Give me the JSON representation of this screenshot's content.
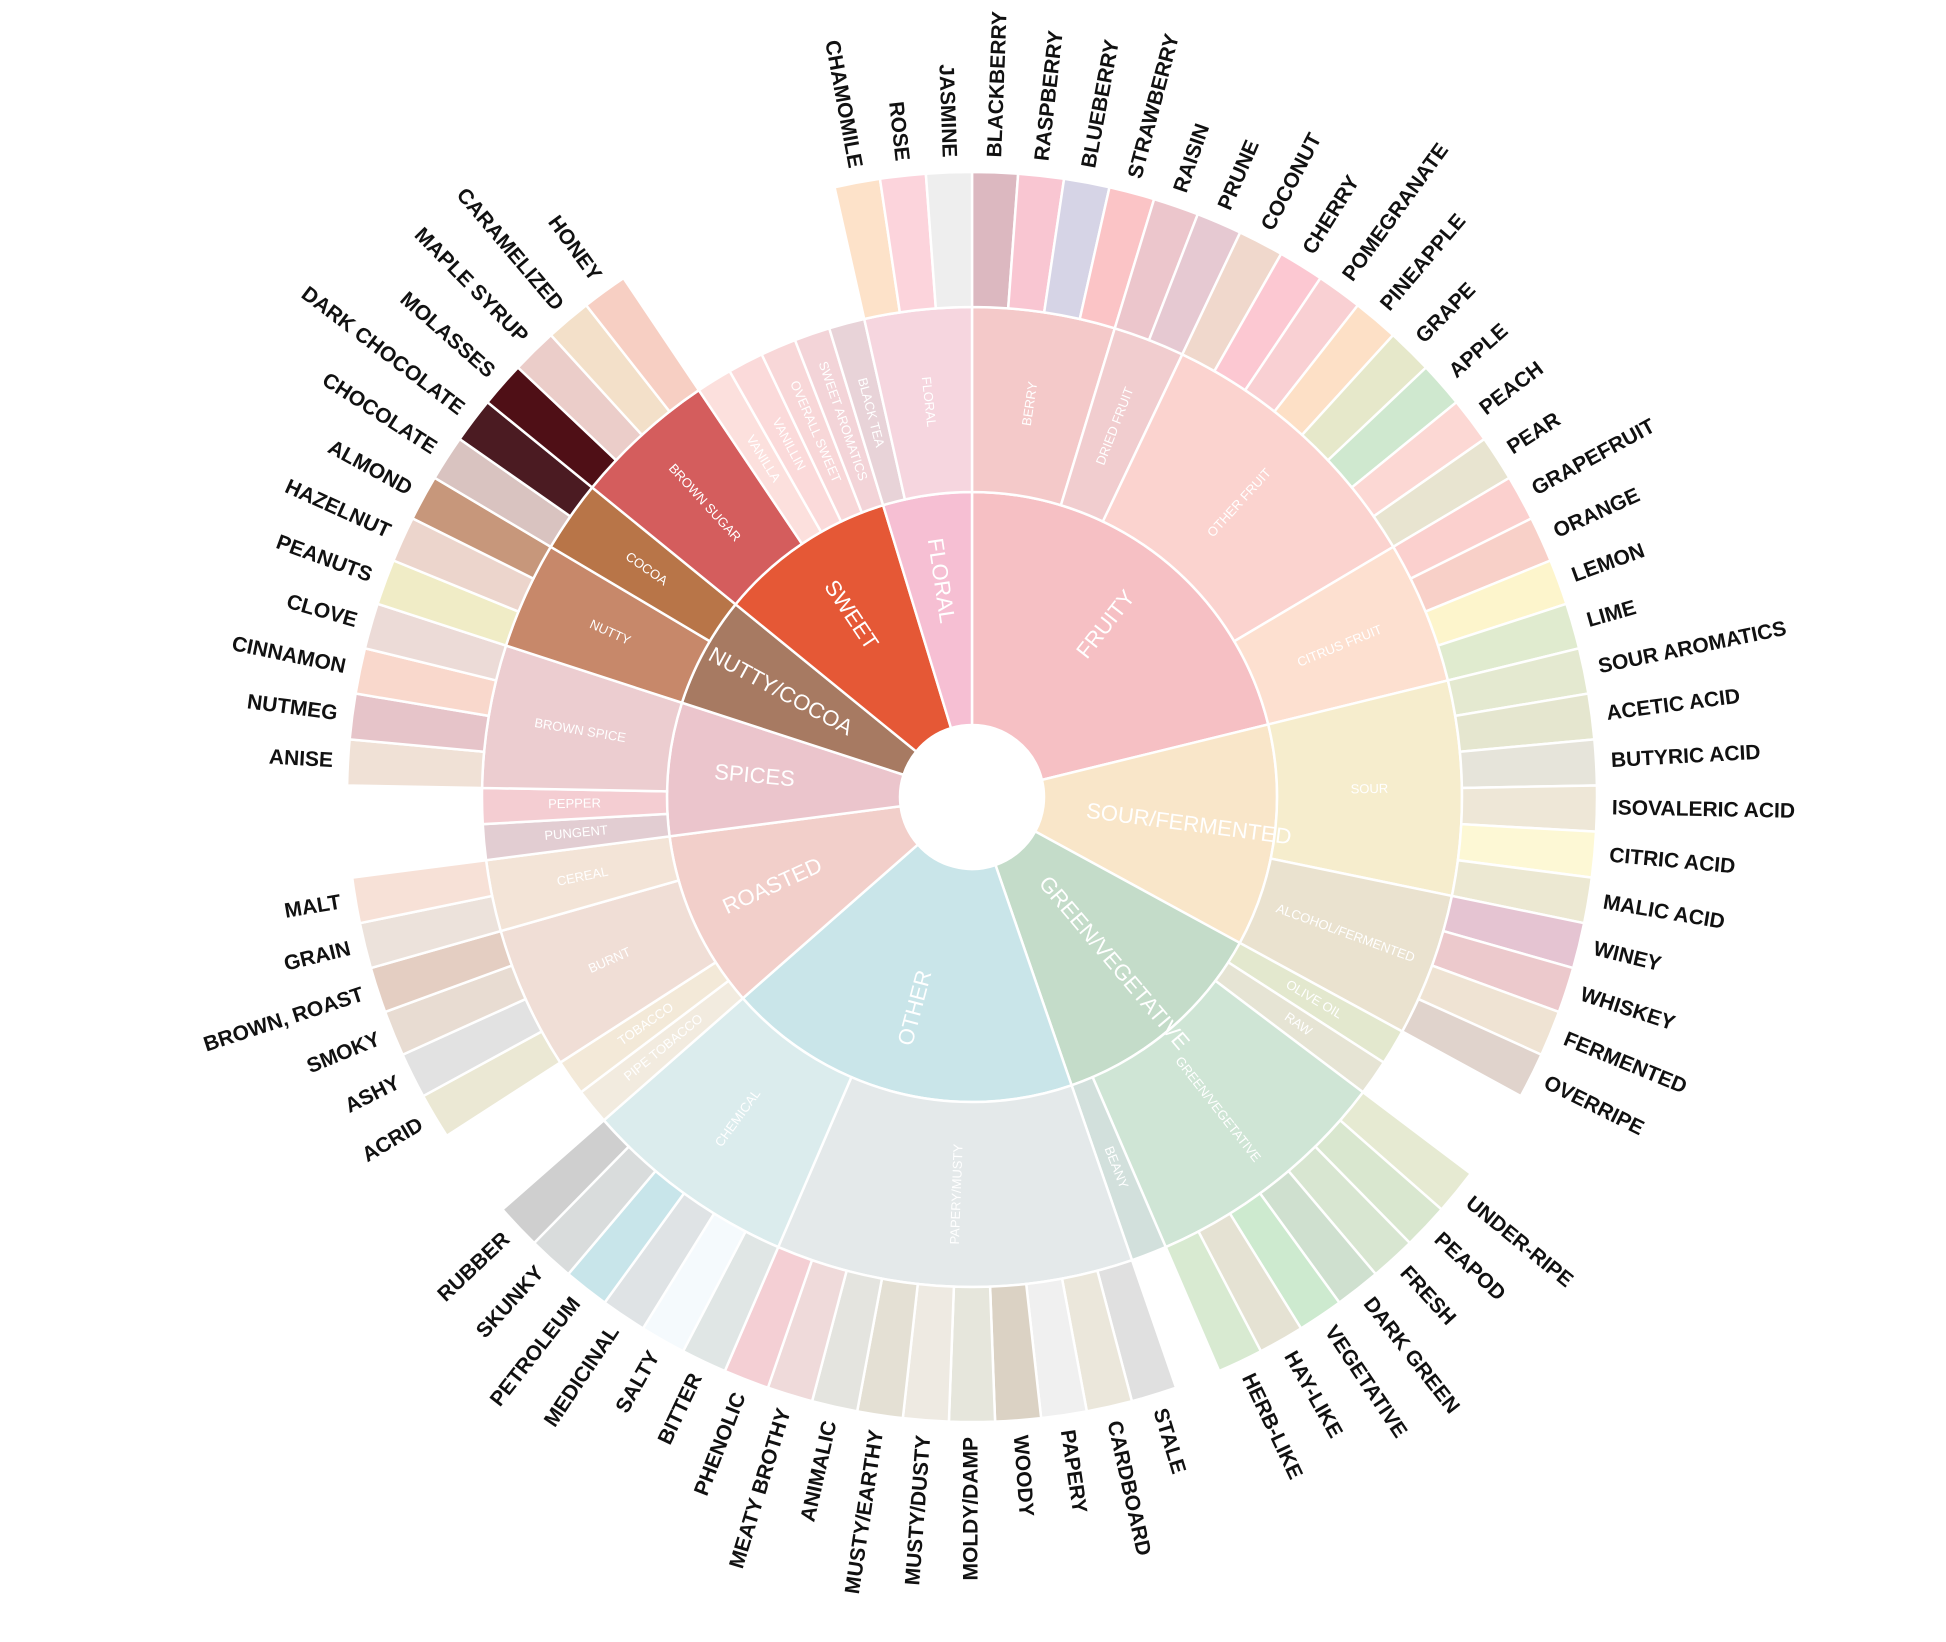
{
  "chart_data": {
    "type": "sunburst",
    "children": [
      {
        "name": "FRUITY",
        "color": "#f6c0c4",
        "children": [
          {
            "name": "BERRY",
            "color": "#f4c9c9",
            "children": [
              {
                "name": "BLACKBERRY",
                "color": "#dcb8c0",
                "value": 1
              },
              {
                "name": "RASPBERRY",
                "color": "#f9c6d2",
                "value": 1
              },
              {
                "name": "BLUEBERRY",
                "color": "#d6d4e6",
                "value": 1
              },
              {
                "name": "STRAWBERRY",
                "color": "#fbc4c6",
                "value": 1
              }
            ]
          },
          {
            "name": "DRIED FRUIT",
            "color": "#f1cdcf",
            "children": [
              {
                "name": "RAISIN",
                "color": "#ecc6cc",
                "value": 1
              },
              {
                "name": "PRUNE",
                "color": "#e6c9d2",
                "value": 1
              }
            ]
          },
          {
            "name": "OTHER FRUIT",
            "color": "#fbd3cf",
            "children": [
              {
                "name": "COCONUT",
                "color": "#f0d8cc",
                "value": 1
              },
              {
                "name": "CHERRY",
                "color": "#fcc8d2",
                "value": 1
              },
              {
                "name": "POMEGRANATE",
                "color": "#f9d0d3",
                "value": 1
              },
              {
                "name": "PINEAPPLE",
                "color": "#fde0c6",
                "value": 1
              },
              {
                "name": "GRAPE",
                "color": "#e6e8ca",
                "value": 1
              },
              {
                "name": "APPLE",
                "color": "#cfe8cf",
                "value": 1
              },
              {
                "name": "PEACH",
                "color": "#fcd8d4",
                "value": 1
              },
              {
                "name": "PEAR",
                "color": "#e8e4d0",
                "value": 1
              }
            ]
          },
          {
            "name": "CITRUS FRUIT",
            "color": "#fde0d0",
            "children": [
              {
                "name": "GRAPEFRUIT",
                "color": "#fbd0ce",
                "value": 1
              },
              {
                "name": "ORANGE",
                "color": "#f8d0c8",
                "value": 1
              },
              {
                "name": "LEMON",
                "color": "#fdf5cc",
                "value": 1
              },
              {
                "name": "LIME",
                "color": "#e0ebcf",
                "value": 1
              }
            ]
          }
        ]
      },
      {
        "name": "SOUR/FERMENTED",
        "color": "#f9e6c9",
        "children": [
          {
            "name": "SOUR",
            "color": "#f6edcd",
            "children": [
              {
                "name": "SOUR AROMATICS",
                "color": "#e4e9d0",
                "value": 1
              },
              {
                "name": "ACETIC ACID",
                "color": "#e5e6cf",
                "value": 1
              },
              {
                "name": "BUTYRIC ACID",
                "color": "#e6e4da",
                "value": 1
              },
              {
                "name": "ISOVALERIC ACID",
                "color": "#eee7d7",
                "value": 1
              },
              {
                "name": "CITRIC ACID",
                "color": "#fdf8d5",
                "value": 1
              },
              {
                "name": "MALIC ACID",
                "color": "#ece8d2",
                "value": 1
              }
            ]
          },
          {
            "name": "ALCOHOL/FERMENTED",
            "color": "#eae2cf",
            "children": [
              {
                "name": "WINEY",
                "color": "#e5c4d2",
                "value": 1
              },
              {
                "name": "WHISKEY",
                "color": "#ecc9cc",
                "value": 1
              },
              {
                "name": "FERMENTED",
                "color": "#efe3d3",
                "value": 1
              },
              {
                "name": "OVERRIPE",
                "color": "#e0d3cc",
                "value": 1
              }
            ]
          }
        ]
      },
      {
        "name": "GREEN/VEGETATIVE",
        "color": "#c4dcc9",
        "children": [
          {
            "name": "OLIVE OIL",
            "color": "#e3e8ce",
            "value": 1
          },
          {
            "name": "RAW",
            "color": "#e6e4d4",
            "value": 1
          },
          {
            "name": "GREEN/VEGETATIVE",
            "color": "#cfe5d5",
            "children": [
              {
                "name": "UNDER-RIPE",
                "color": "#e6ead2",
                "value": 1
              },
              {
                "name": "PEAPOD",
                "color": "#d9e7cf",
                "value": 1
              },
              {
                "name": "FRESH",
                "color": "#d8e6d1",
                "value": 1
              },
              {
                "name": "DARK GREEN",
                "color": "#cfe0cf",
                "value": 1
              },
              {
                "name": "VEGETATIVE",
                "color": "#cdeacf",
                "value": 1
              },
              {
                "name": "HAY-LIKE",
                "color": "#e5e2d3",
                "value": 1
              },
              {
                "name": "HERB-LIKE",
                "color": "#d8ead1",
                "value": 1
              }
            ]
          },
          {
            "name": "BEANY",
            "color": "#d2e0dc",
            "value": 1
          }
        ]
      },
      {
        "name": "OTHER",
        "color": "#c9e5e9",
        "children": [
          {
            "name": "PAPERY/MUSTY",
            "color": "#e4e9ea",
            "children": [
              {
                "name": "STALE",
                "color": "#e0e0e0",
                "value": 1
              },
              {
                "name": "CARDBOARD",
                "color": "#ebe7db",
                "value": 1
              },
              {
                "name": "PAPERY",
                "color": "#f0f0f0",
                "value": 1
              },
              {
                "name": "WOODY",
                "color": "#dbd2c4",
                "value": 1
              },
              {
                "name": "MOLDY/DAMP",
                "color": "#e6e6dc",
                "value": 1
              },
              {
                "name": "MUSTY/DUSTY",
                "color": "#eeeae2",
                "value": 1
              },
              {
                "name": "MUSTY/EARTHY",
                "color": "#e4e0d4",
                "value": 1
              },
              {
                "name": "ANIMALIC",
                "color": "#e4e4df",
                "value": 1
              },
              {
                "name": "MEATY BROTHY",
                "color": "#efdada",
                "value": 1
              },
              {
                "name": "PHENOLIC",
                "color": "#f4cfd4",
                "value": 1
              }
            ]
          },
          {
            "name": "CHEMICAL",
            "color": "#dbeced",
            "children": [
              {
                "name": "BITTER",
                "color": "#e0e6e5",
                "value": 1
              },
              {
                "name": "SALTY",
                "color": "#f5fafd",
                "value": 1
              },
              {
                "name": "MEDICINAL",
                "color": "#dfe3e5",
                "value": 1
              },
              {
                "name": "PETROLEUM",
                "color": "#c8e5ea",
                "value": 1
              },
              {
                "name": "SKUNKY",
                "color": "#d9dcdc",
                "value": 1
              },
              {
                "name": "RUBBER",
                "color": "#cfcfcf",
                "value": 1
              }
            ]
          }
        ]
      },
      {
        "name": "ROASTED",
        "color": "#f2cfca",
        "children": [
          {
            "name": "PIPE TOBACCO",
            "color": "#f2ebdf",
            "value": 1
          },
          {
            "name": "TOBACCO",
            "color": "#f3e9d8",
            "value": 1
          },
          {
            "name": "BURNT",
            "color": "#f0ded6",
            "children": [
              {
                "name": "ACRID",
                "color": "#ebe8d4",
                "value": 1
              },
              {
                "name": "ASHY",
                "color": "#e2e2e2",
                "value": 1
              },
              {
                "name": "SMOKY",
                "color": "#e8dcd2",
                "value": 1
              },
              {
                "name": "BROWN, ROAST",
                "color": "#e4cec2",
                "value": 1
              }
            ]
          },
          {
            "name": "CEREAL",
            "color": "#f3e4d7",
            "children": [
              {
                "name": "GRAIN",
                "color": "#ece2db",
                "value": 1
              },
              {
                "name": "MALT",
                "color": "#f7e1d7",
                "value": 1
              }
            ]
          }
        ]
      },
      {
        "name": "SPICES",
        "color": "#ebc5cc",
        "children": [
          {
            "name": "PUNGENT",
            "color": "#e2cdd2",
            "value": 1
          },
          {
            "name": "PEPPER",
            "color": "#f4cdd2",
            "value": 1
          },
          {
            "name": "BROWN SPICE",
            "color": "#eccdd0",
            "children": [
              {
                "name": "ANISE",
                "color": "#f0e1d6",
                "value": 1
              },
              {
                "name": "NUTMEG",
                "color": "#e6c4c9",
                "value": 1
              },
              {
                "name": "CINNAMON",
                "color": "#f9d8cc",
                "value": 1
              },
              {
                "name": "CLOVE",
                "color": "#ecdbd7",
                "value": 1
              }
            ]
          }
        ]
      },
      {
        "name": "NUTTY/COCOA",
        "color": "#a77a62",
        "children": [
          {
            "name": "NUTTY",
            "color": "#c7886a",
            "children": [
              {
                "name": "PEANUTS",
                "color": "#f0ecc6",
                "value": 1
              },
              {
                "name": "HAZELNUT",
                "color": "#ecd5cc",
                "value": 1
              },
              {
                "name": "ALMOND",
                "color": "#c7977b",
                "value": 1
              }
            ]
          },
          {
            "name": "COCOA",
            "color": "#b87548",
            "children": [
              {
                "name": "CHOCOLATE",
                "color": "#d9c3c0",
                "value": 1
              },
              {
                "name": "DARK CHOCOLATE",
                "color": "#4b1b22",
                "value": 1
              }
            ]
          }
        ]
      },
      {
        "name": "SWEET",
        "color": "#e55836",
        "children": [
          {
            "name": "BROWN SUGAR",
            "color": "#d45d5d",
            "children": [
              {
                "name": "MOLASSES",
                "color": "#4f0f16",
                "value": 1
              },
              {
                "name": "MAPLE SYRUP",
                "color": "#ebcdc9",
                "value": 1
              },
              {
                "name": "CARAMELIZED",
                "color": "#f3e0c9",
                "value": 1
              },
              {
                "name": "HONEY",
                "color": "#f7cfc3",
                "value": 1
              }
            ]
          },
          {
            "name": "VANILLA",
            "color": "#fce0dd",
            "value": 1
          },
          {
            "name": "VANILLIN",
            "color": "#fbdada",
            "value": 1
          },
          {
            "name": "OVERALL SWEET",
            "color": "#f8d7d8",
            "value": 1
          },
          {
            "name": "SWEET AROMATICS",
            "color": "#f3d4d8",
            "value": 1
          }
        ]
      },
      {
        "name": "FLORAL",
        "color": "#f6bfd3",
        "children": [
          {
            "name": "BLACK TEA",
            "color": "#e8d3d8",
            "value": 1
          },
          {
            "name": "FLORAL",
            "color": "#f6d6df",
            "children": [
              {
                "name": "CHAMOMILE",
                "color": "#fde2c9",
                "value": 1
              },
              {
                "name": "ROSE",
                "color": "#fcd4dc",
                "value": 1
              },
              {
                "name": "JASMINE",
                "color": "#eeeeee",
                "value": 1
              }
            ]
          }
        ]
      }
    ]
  }
}
